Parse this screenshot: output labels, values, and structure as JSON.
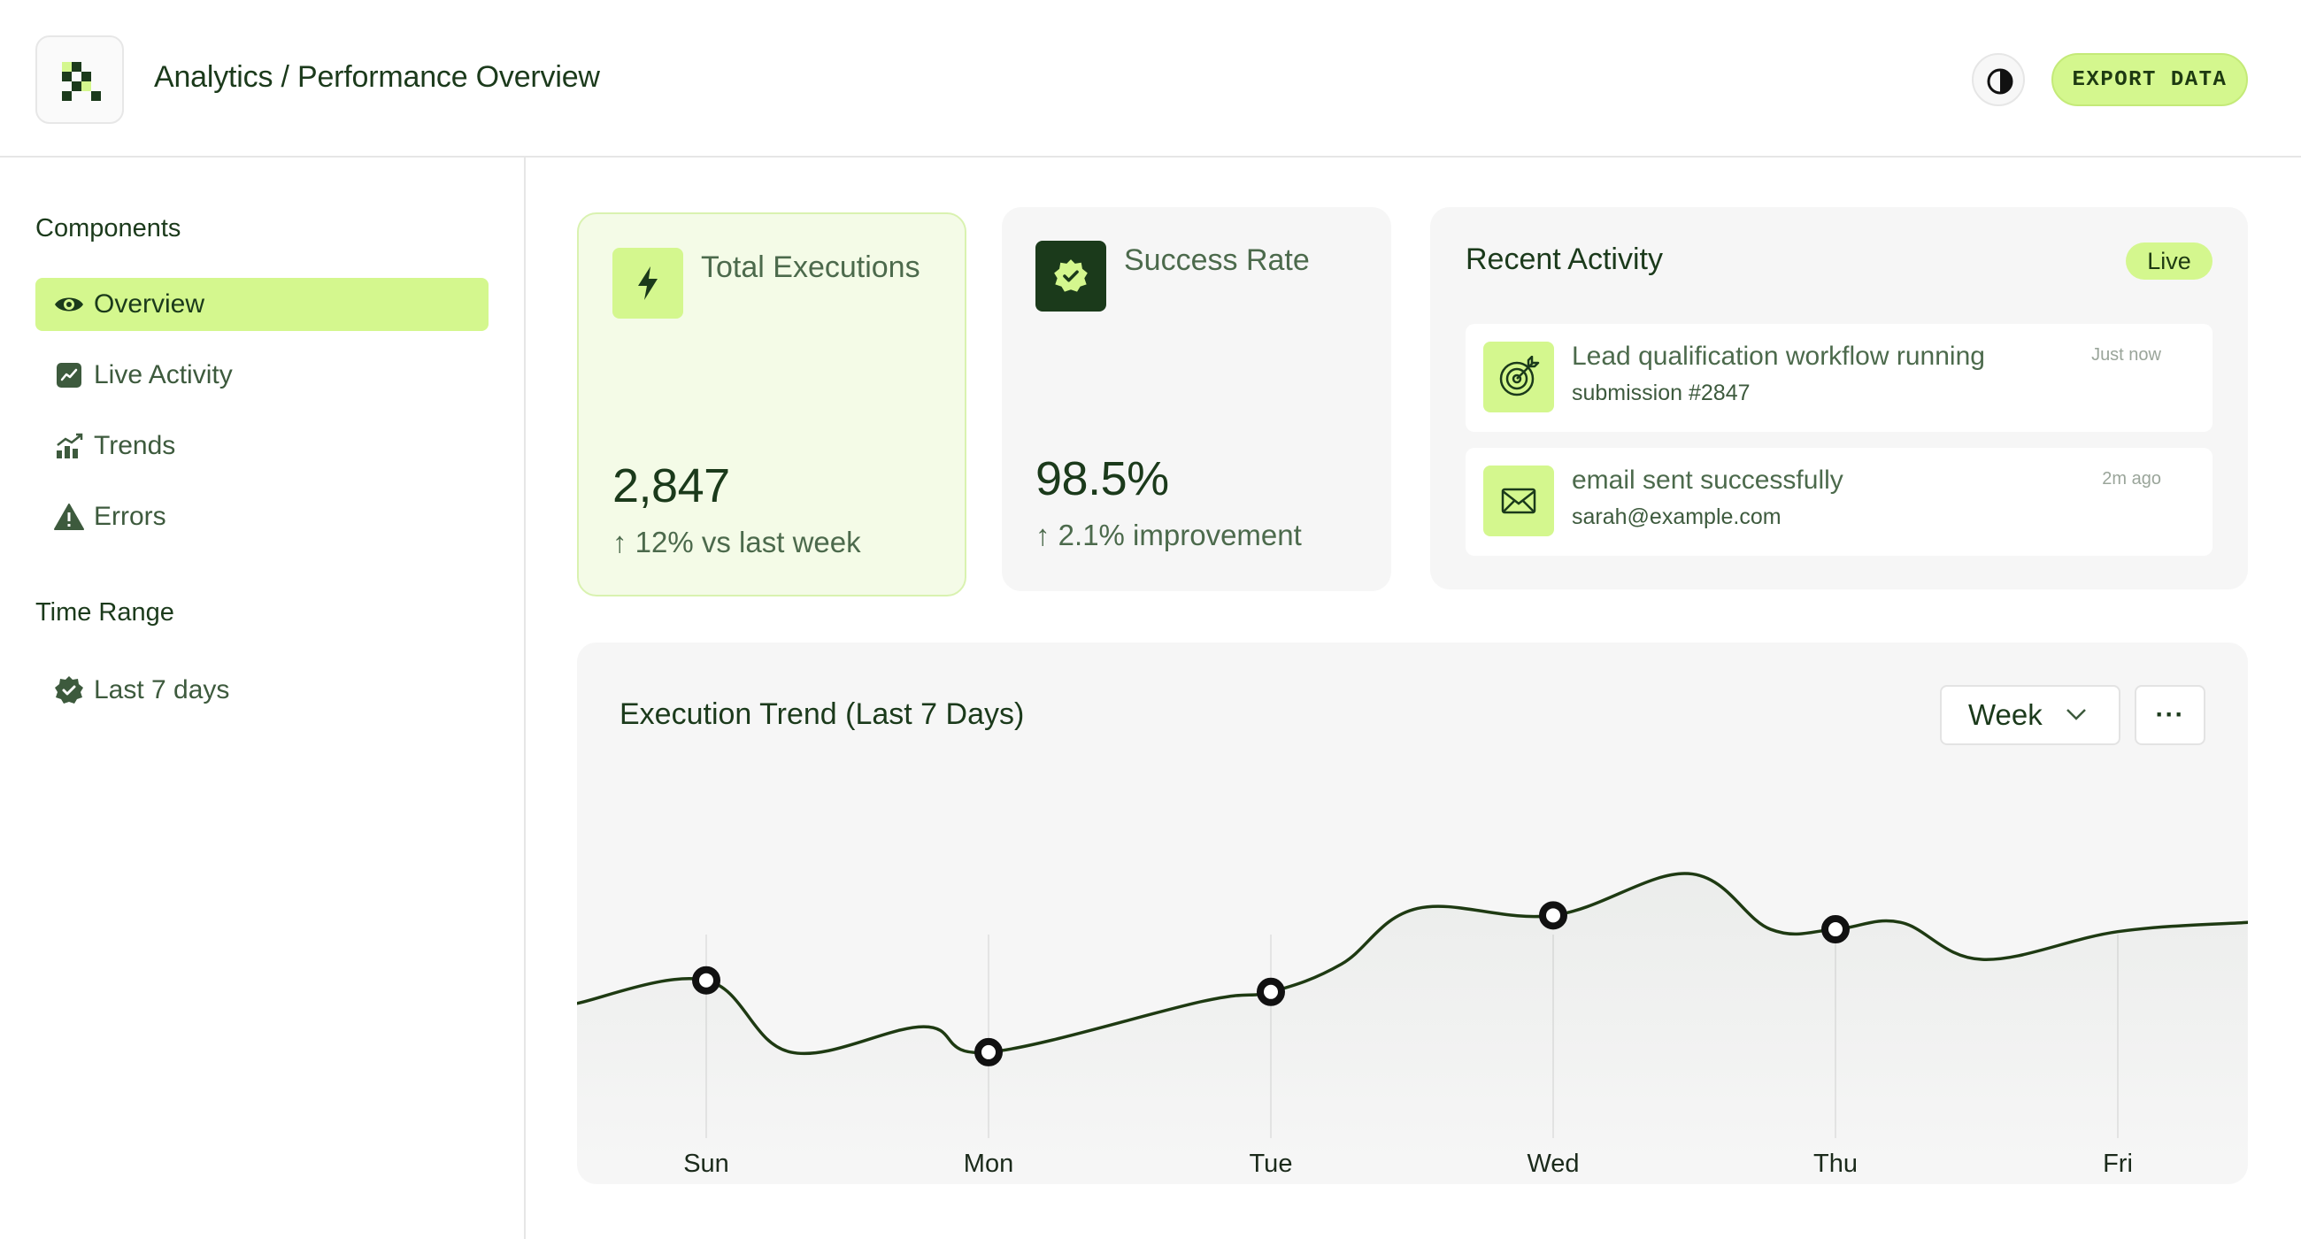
{
  "header": {
    "title": "Analytics / Performance Overview",
    "export_label": "EXPORT DATA",
    "logo_icon": "checker-logo-icon",
    "theme_icon": "contrast-icon"
  },
  "sidebar": {
    "components_heading": "Components",
    "items": [
      {
        "label": "Overview",
        "icon": "eye-icon",
        "active": true
      },
      {
        "label": "Live Activity",
        "icon": "activity-chart-icon",
        "active": false
      },
      {
        "label": "Trends",
        "icon": "trend-bars-icon",
        "active": false
      },
      {
        "label": "Errors",
        "icon": "warning-icon",
        "active": false
      }
    ],
    "time_heading": "Time Range",
    "time_item": {
      "label": "Last 7 days",
      "icon": "verified-badge-icon"
    }
  },
  "kpis": {
    "executions": {
      "label": "Total Executions",
      "value": "2,847",
      "change": "↑ 12% vs last week",
      "icon": "lightning-icon"
    },
    "success": {
      "label": "Success Rate",
      "value": "98.5%",
      "change": "↑ 2.1% improvement",
      "icon": "verified-badge-icon"
    }
  },
  "activity": {
    "title": "Recent Activity",
    "badge": "Live",
    "items": [
      {
        "main": "Lead qualification workflow running",
        "sub": "submission #2847",
        "time": "Just now",
        "icon": "target-icon"
      },
      {
        "main": "email sent successfully",
        "sub": "sarah@example.com",
        "time": "2m ago",
        "icon": "mail-icon"
      }
    ]
  },
  "chart": {
    "title": "Execution Trend (Last 7 Days)",
    "range_select": "Week",
    "more_label": "···"
  },
  "colors": {
    "accent": "#d4f78e",
    "dark_green": "#1b3a1b",
    "line": "#1e3a12"
  },
  "chart_data": {
    "type": "line",
    "categories": [
      "Sun",
      "Mon",
      "Tue",
      "Wed",
      "Thu",
      "Fri"
    ],
    "x": [
      -0.46,
      0,
      0.3,
      0.77,
      1,
      1.76,
      2,
      2.25,
      2.52,
      3,
      3.48,
      3.77,
      4,
      4.23,
      4.52,
      5,
      5.46
    ],
    "values": [
      0.55,
      0.65,
      0.34,
      0.45,
      0.34,
      0.56,
      0.6,
      0.72,
      0.96,
      0.93,
      1.11,
      0.87,
      0.87,
      0.9,
      0.74,
      0.86,
      0.9
    ],
    "marked_points": [
      {
        "category": "Sun",
        "value": 0.65
      },
      {
        "category": "Mon",
        "value": 0.34
      },
      {
        "category": "Tue",
        "value": 0.6
      },
      {
        "category": "Wed",
        "value": 0.93
      },
      {
        "category": "Thu",
        "value": 0.87
      }
    ],
    "ylim": [
      0,
      1.3
    ],
    "grid": false,
    "xlabel": "",
    "ylabel": ""
  }
}
